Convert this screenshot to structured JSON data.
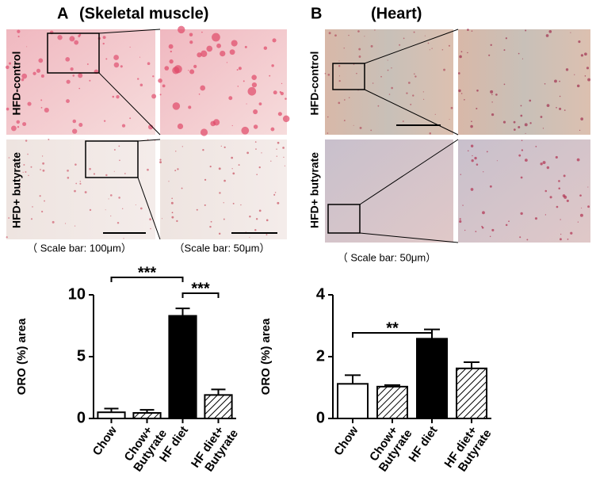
{
  "figure": {
    "panel_a": {
      "letter": "A",
      "title": "(Skeletal muscle)",
      "row_labels": [
        "HFD-control",
        "HFD+ butyrate"
      ],
      "captions": [
        "（ Scale bar: 100μm）",
        "（Scale bar: 50μm）"
      ]
    },
    "panel_b": {
      "letter": "B",
      "title": "(Heart)",
      "row_labels": [
        "HFD-control",
        "HFD+ butyrate"
      ],
      "captions": [
        "（ Scale bar: 50μm）"
      ]
    }
  },
  "chart_data": [
    {
      "type": "bar",
      "y_label": "ORO (%) area",
      "categories": [
        [
          "Chow"
        ],
        [
          "Chow+",
          "Butyrate"
        ],
        [
          "HF diet"
        ],
        [
          "HF diet+",
          "Butyrate"
        ]
      ],
      "values": [
        0.5,
        0.45,
        8.3,
        1.9
      ],
      "errors": [
        0.3,
        0.25,
        0.6,
        0.45
      ],
      "fills": [
        "white",
        "hatch",
        "black",
        "hatch"
      ],
      "ylim": [
        0,
        10
      ],
      "yticks": [
        0,
        5,
        10
      ],
      "annotations": [
        {
          "text": "***",
          "from": 0,
          "to": 2
        },
        {
          "text": "***",
          "from": 2,
          "to": 3
        }
      ]
    },
    {
      "type": "bar",
      "y_label": "ORO (%) area",
      "categories": [
        [
          "Chow"
        ],
        [
          "Chow+",
          "Butyrate"
        ],
        [
          "HF diet"
        ],
        [
          "HF diet+",
          "Butyrate"
        ]
      ],
      "values": [
        1.12,
        1.03,
        2.58,
        1.62
      ],
      "errors": [
        0.28,
        0.05,
        0.3,
        0.2
      ],
      "fills": [
        "white",
        "hatch",
        "black",
        "hatch"
      ],
      "ylim": [
        0,
        4
      ],
      "yticks": [
        0,
        2,
        4
      ],
      "annotations": [
        {
          "text": "**",
          "from": 0,
          "to": 2
        }
      ]
    }
  ]
}
